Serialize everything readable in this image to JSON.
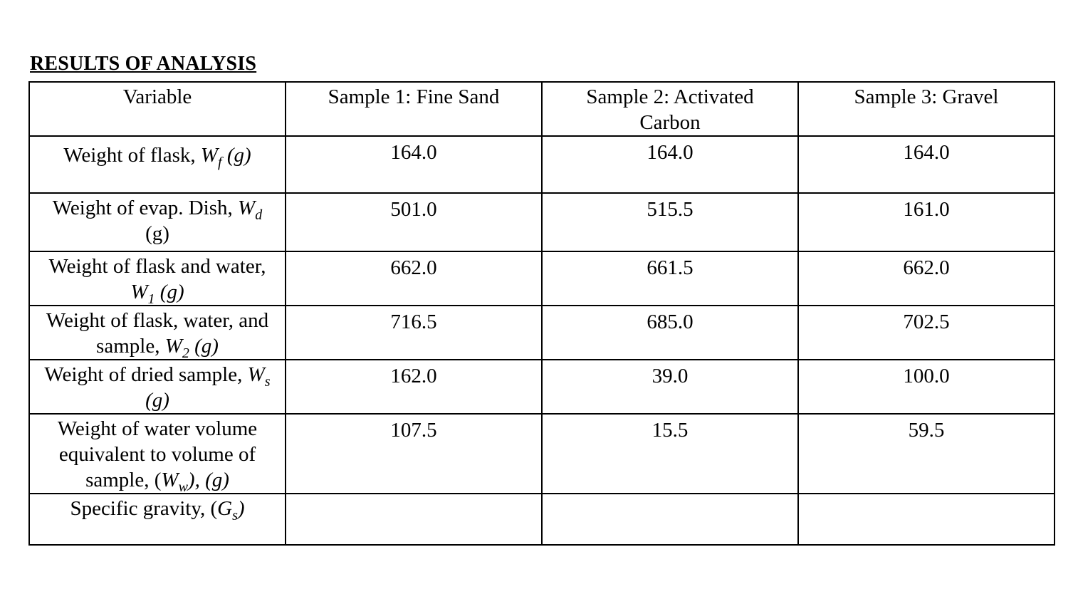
{
  "title": "RESULTS OF ANALYSIS",
  "headers": [
    "Variable",
    "Sample 1: Fine Sand",
    "Sample 2: Activated Carbon",
    "Sample 3: Gravel"
  ],
  "rows": [
    {
      "label": {
        "pre": "Weight of flask, ",
        "var": "W",
        "sub": "f",
        "post": " (g)",
        "post_italic": true
      },
      "values": [
        "164.0",
        "164.0",
        "164.0"
      ]
    },
    {
      "label": {
        "pre": "Weight of evap. Dish, ",
        "var": "W",
        "sub": "d",
        "post": " (g)",
        "post_italic": false
      },
      "values": [
        "501.0",
        "515.5",
        "161.0"
      ]
    },
    {
      "label": {
        "pre": "Weight of flask and water, ",
        "var": "W",
        "sub": "1",
        "post": " (g)",
        "post_italic": true
      },
      "values": [
        "662.0",
        "661.5",
        "662.0"
      ]
    },
    {
      "label": {
        "pre": "Weight of flask, water, and sample, ",
        "var": "W",
        "sub": "2",
        "post": " (g)",
        "post_italic": true
      },
      "values": [
        "716.5",
        "685.0",
        "702.5"
      ]
    },
    {
      "label": {
        "pre": "Weight of dried sample, ",
        "var": "W",
        "sub": "s",
        "post": " (g)",
        "post_italic": true
      },
      "values": [
        "162.0",
        "39.0",
        "100.0"
      ]
    },
    {
      "label": {
        "pre": "Weight of water volume equivalent to volume of sample, (",
        "var": "W",
        "sub": "w",
        "post": "), (g)",
        "post_italic": true
      },
      "values": [
        "107.5",
        "15.5",
        "59.5"
      ]
    },
    {
      "label": {
        "pre": "Specific gravity, (",
        "var": "G",
        "sub": "s",
        "post": ")",
        "post_italic": true
      },
      "values": [
        "",
        "",
        ""
      ]
    }
  ]
}
